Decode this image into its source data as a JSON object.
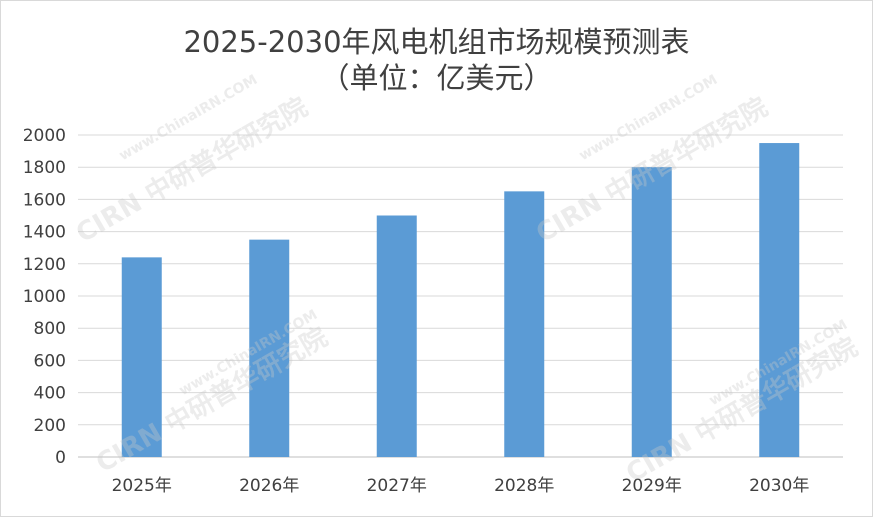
{
  "chart_data": {
    "type": "bar",
    "title": "2025-2030年风电机组市场规模预测表",
    "subtitle": "（单位：亿美元）",
    "categories": [
      "2025年",
      "2026年",
      "2027年",
      "2028年",
      "2029年",
      "2030年"
    ],
    "values": [
      1240,
      1350,
      1500,
      1650,
      1800,
      1950
    ],
    "ylim": [
      0,
      2000
    ],
    "yticks": [
      "0",
      "200",
      "400",
      "600",
      "800",
      "1000",
      "1200",
      "1400",
      "1600",
      "1800",
      "2000"
    ],
    "grid": true,
    "legend": "none",
    "bar_color": "#5b9bd5"
  },
  "watermark": {
    "text": "中研普华研究院",
    "url": "www.ChinaIRN.COM",
    "logo": "CIRN"
  }
}
